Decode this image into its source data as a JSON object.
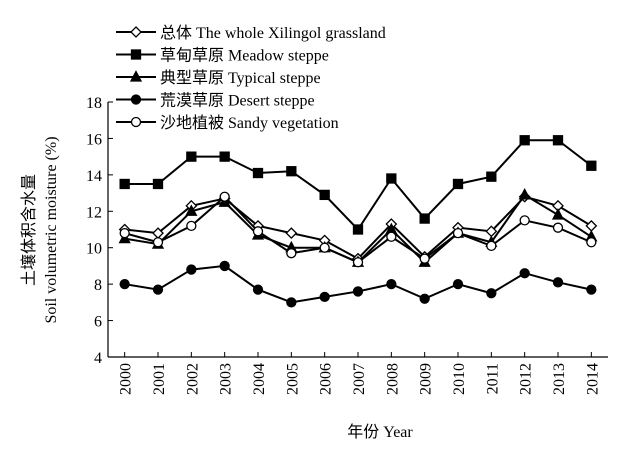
{
  "chart_data": {
    "type": "line",
    "x_label": "年份 Year",
    "y_label": [
      "土壤体积含水量",
      "Soil volumetric moisture (%)"
    ],
    "categories": [
      "2000",
      "2001",
      "2002",
      "2003",
      "2004",
      "2005",
      "2006",
      "2007",
      "2008",
      "2009",
      "2010",
      "2011",
      "2012",
      "2013",
      "2014"
    ],
    "ylim": [
      4,
      18
    ],
    "yticks": [
      4,
      6,
      8,
      10,
      12,
      14,
      16,
      18
    ],
    "series": [
      {
        "name": "总体 The whole Xilingol grassland",
        "color": "#000000",
        "marker": "diamond-open",
        "values": [
          11.0,
          10.8,
          12.3,
          12.7,
          11.2,
          10.8,
          10.4,
          9.4,
          11.3,
          9.5,
          11.1,
          10.9,
          12.8,
          12.3,
          11.2
        ]
      },
      {
        "name": "草甸草原 Meadow steppe",
        "color": "#000000",
        "marker": "square",
        "values": [
          13.5,
          13.5,
          15.0,
          15.0,
          14.1,
          14.2,
          12.9,
          11.0,
          13.8,
          11.6,
          13.5,
          13.9,
          15.9,
          15.9,
          14.5
        ]
      },
      {
        "name": "典型草原 Typical steppe",
        "color": "#000000",
        "marker": "triangle",
        "values": [
          10.5,
          10.2,
          12.0,
          12.5,
          10.7,
          10.0,
          10.0,
          9.2,
          11.0,
          9.2,
          10.8,
          10.3,
          12.9,
          11.8,
          10.6
        ]
      },
      {
        "name": "荒漠草原 Desert steppe",
        "color": "#000000",
        "marker": "circle",
        "values": [
          8.0,
          7.7,
          8.8,
          9.0,
          7.7,
          7.0,
          7.3,
          7.6,
          8.0,
          7.2,
          8.0,
          7.5,
          8.6,
          8.1,
          7.7
        ]
      },
      {
        "name": "沙地植被 Sandy vegetation",
        "color": "#000000",
        "marker": "circle-open",
        "values": [
          10.8,
          10.3,
          11.2,
          12.8,
          10.9,
          9.7,
          10.0,
          9.2,
          10.6,
          9.4,
          10.8,
          10.1,
          11.5,
          11.1,
          10.3
        ]
      }
    ]
  }
}
